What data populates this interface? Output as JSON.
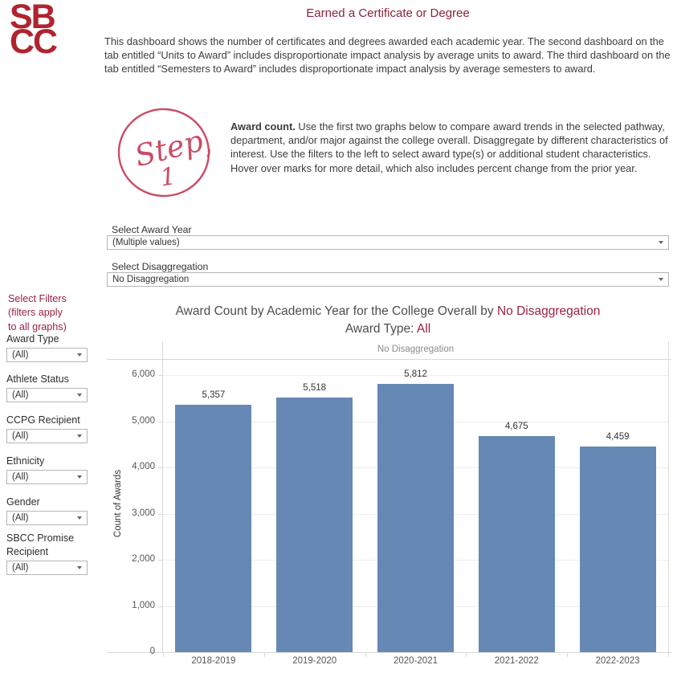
{
  "header": {
    "logo_line1": "SB",
    "logo_line2": "CC",
    "title": "Earned a Certificate or Degree",
    "intro": "This dashboard shows the number of certificates and degrees awarded each academic year. The second dashboard on the tab entitled “Units to Award” includes disproportionate impact analysis by average units to award. The third dashboard on the tab entitled “Semesters to Award” includes disproportionate impact analysis by average semesters to award."
  },
  "step": {
    "badge_word": "Step",
    "badge_number": "1",
    "lead": "Award count.",
    "text": " Use the first two graphs below to compare award trends in the selected pathway, department, and/or major against the college overall. Disaggregate by different characteristics of interest. Use the filters to the left to select award type(s) or additional student characteristics. Hover over marks for more detail, which also includes percent change from the prior year."
  },
  "parameters": {
    "award_year": {
      "label": "Select Award Year",
      "value": "(Multiple values)"
    },
    "disaggregation": {
      "label": "Select Disaggregation",
      "value": "No Disaggregation"
    }
  },
  "sidebar": {
    "heading_lines": [
      "Select Filters",
      "(filters apply",
      "to all graphs)"
    ],
    "filters": [
      {
        "label": "Award Type",
        "value": "(All)"
      },
      {
        "label": "Athlete Status",
        "value": "(All)"
      },
      {
        "label": "CCPG Recipient",
        "value": "(All)"
      },
      {
        "label": "Ethnicity",
        "value": "(All)"
      },
      {
        "label": "Gender",
        "value": "(All)"
      },
      {
        "label": "SBCC Promise Recipient",
        "value": "(All)"
      }
    ]
  },
  "chart": {
    "title_prefix": "Award Count by Academic Year for the College Overall by ",
    "title_highlight": "No Disaggregation",
    "subtitle_prefix": "Award Type: ",
    "subtitle_highlight": "All",
    "panel_header": "No Disaggregation"
  },
  "chart_data": {
    "type": "bar",
    "title": "Award Count by Academic Year for the College Overall by No Disaggregation",
    "subtitle": "Award Type: All",
    "panel_header": "No Disaggregation",
    "categories": [
      "2018-2019",
      "2019-2020",
      "2020-2021",
      "2021-2022",
      "2022-2023"
    ],
    "values": [
      5357,
      5518,
      5812,
      4675,
      4459
    ],
    "value_labels": [
      "5,357",
      "5,518",
      "5,812",
      "4,675",
      "4,459"
    ],
    "xlabel": "",
    "ylabel": "Count of Awards",
    "ylim": [
      0,
      6350
    ],
    "yticks": [
      0,
      1000,
      2000,
      3000,
      4000,
      5000,
      6000
    ],
    "ytick_labels": [
      "0",
      "1,000",
      "2,000",
      "3,000",
      "4,000",
      "5,000",
      "6,000"
    ],
    "grid": true,
    "legend": false,
    "bar_color": "#6688b4"
  },
  "colors": {
    "accent_red": "#992140",
    "logo_red": "#b0242f",
    "step_crimson": "#c94d64",
    "bar_blue": "#6688b4"
  }
}
